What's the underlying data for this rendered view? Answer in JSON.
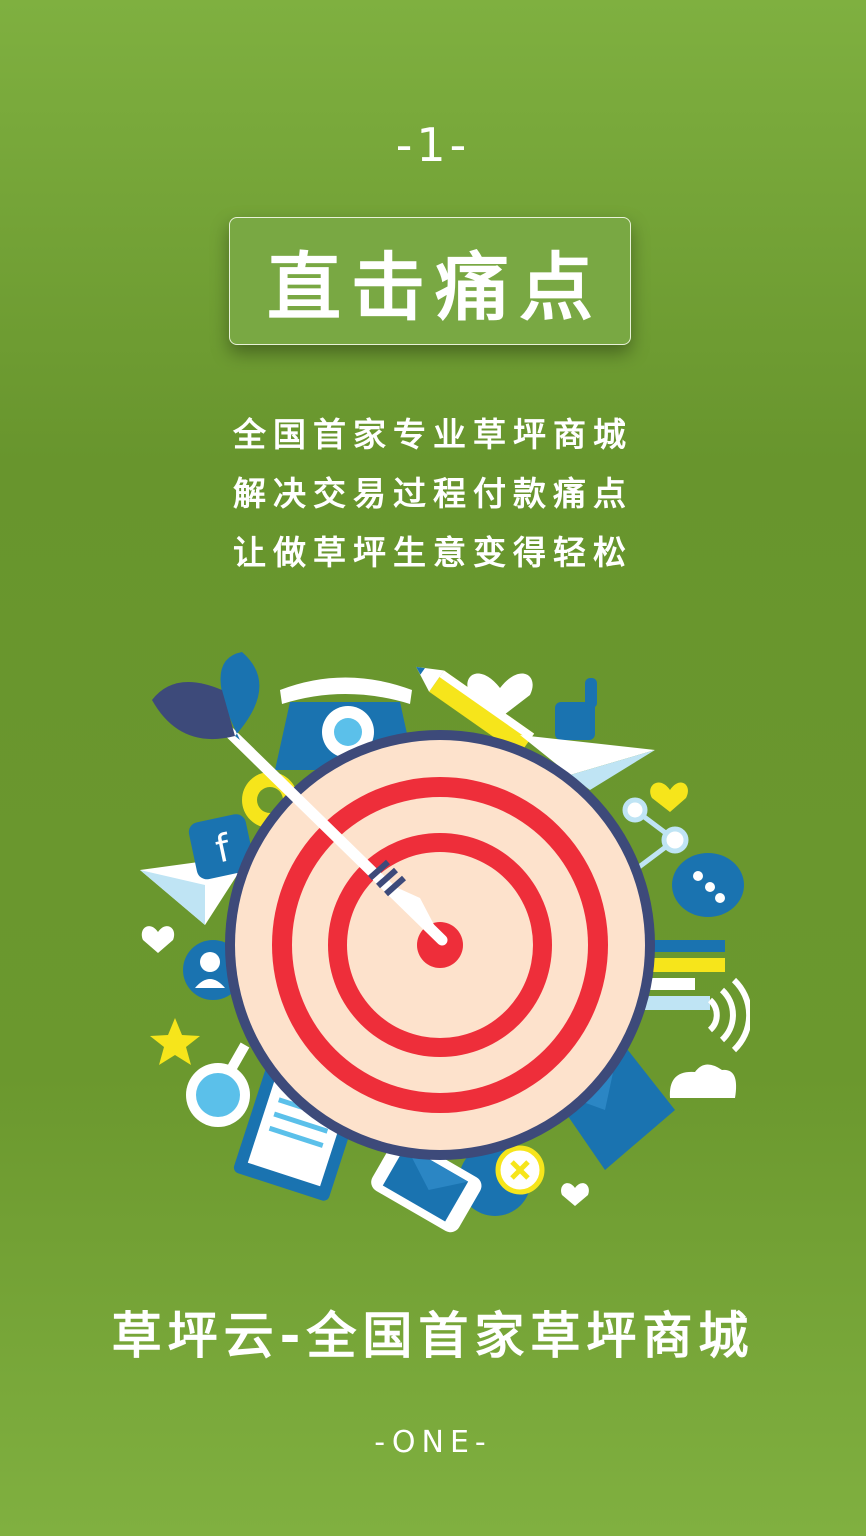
{
  "page_number": "-1-",
  "title": "直击痛点",
  "tagline": [
    "全国首家专业草坪商城",
    "解决交易过程付款痛点",
    "让做草坪生意变得轻松"
  ],
  "brand_line": "草坪云-全国首家草坪商城",
  "footer": "-ONE-",
  "colors": {
    "background": "#6b982e",
    "target_red": "#ee2e3a",
    "target_cream": "#fde2cc",
    "target_ring": "#3d4a7a",
    "accent_blue": "#1a73b0",
    "accent_yellow": "#f6e51b"
  },
  "icons": [
    "dart-icon",
    "telephone-icon",
    "pencil-icon",
    "heart-icon",
    "thumbs-up-icon",
    "paper-plane-icon",
    "gear-icon",
    "facebook-icon",
    "share-icon",
    "chat-icon",
    "user-icon",
    "star-icon",
    "magnifier-icon",
    "clipboard-icon",
    "smartphone-icon",
    "pie-chart-icon",
    "bar-chart-icon",
    "wifi-icon",
    "cloud-icon",
    "envelope-icon",
    "target-icon"
  ]
}
